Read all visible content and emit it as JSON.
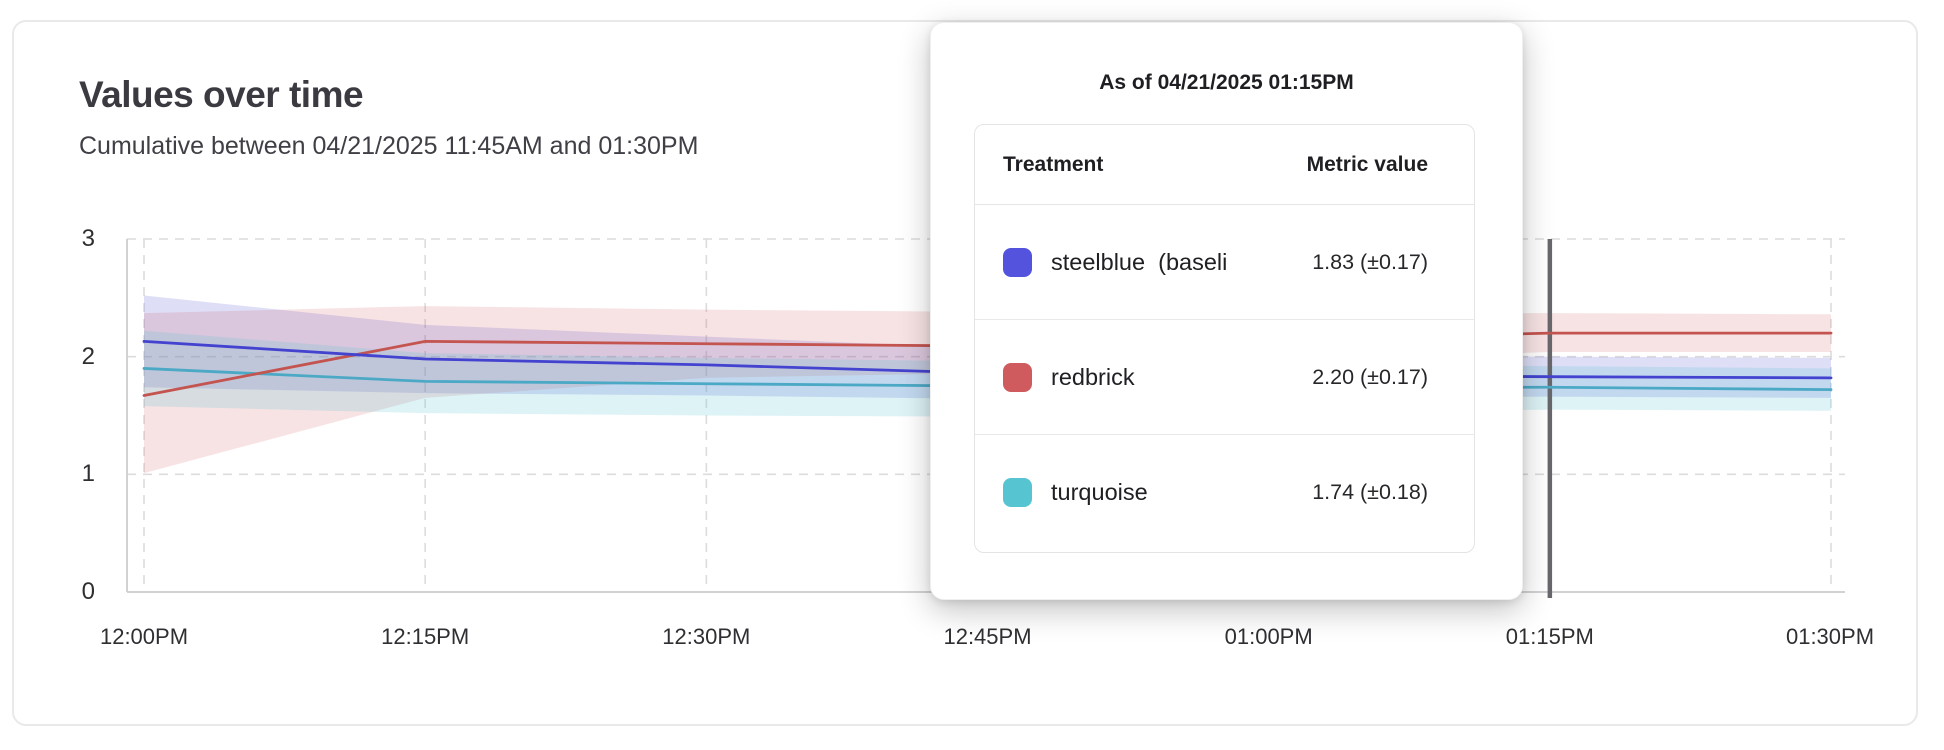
{
  "card": {
    "title": "Values over time",
    "subtitle": "Cumulative between 04/21/2025 11:45AM and 01:30PM"
  },
  "tooltip": {
    "title": "As of 04/21/2025 01:15PM",
    "columns": [
      "Treatment",
      "Metric value"
    ],
    "rows": [
      {
        "label": "steelblue  (baseli",
        "value": "1.83 (±0.17)",
        "swatch_color": "#5353de"
      },
      {
        "label": "redbrick",
        "value": "2.20 (±0.17)",
        "swatch_color": "#cf5b5e"
      },
      {
        "label": "turquoise",
        "value": "1.74 (±0.18)",
        "swatch_color": "#57c5d1"
      }
    ]
  },
  "chart_data": {
    "type": "line",
    "title": "Values over time",
    "x_tick_labels": [
      "12:00PM",
      "12:15PM",
      "12:30PM",
      "12:45PM",
      "01:00PM",
      "01:15PM",
      "01:30PM"
    ],
    "x_minutes": [
      0,
      15,
      30,
      45,
      60,
      75,
      90
    ],
    "y_ticks": [
      0,
      1,
      2,
      3
    ],
    "ylim": [
      0,
      3
    ],
    "grid": "dashed",
    "legend_position": "tooltip",
    "hover_marker": {
      "x_label": "01:15PM",
      "x_minute": 75,
      "color": "#68686c"
    },
    "colors": {
      "grid": "#dcdcdc",
      "axis": "#d2d2d4"
    },
    "series": [
      {
        "name": "steelblue",
        "line_color": "#4343cf",
        "band_color": "rgba(88,88,214,0.20)",
        "values": [
          2.13,
          1.98,
          1.93,
          1.86,
          1.84,
          1.83,
          1.82
        ],
        "band_upper": [
          2.52,
          2.27,
          2.17,
          2.07,
          2.02,
          2.0,
          1.99
        ],
        "band_lower": [
          1.74,
          1.69,
          1.67,
          1.64,
          1.65,
          1.66,
          1.65
        ]
      },
      {
        "name": "redbrick",
        "line_color": "#c3544f",
        "band_color": "rgba(205,90,92,0.17)",
        "values": [
          1.67,
          2.13,
          2.11,
          2.09,
          2.14,
          2.2,
          2.2
        ],
        "band_upper": [
          2.37,
          2.43,
          2.4,
          2.38,
          2.37,
          2.37,
          2.36
        ],
        "band_lower": [
          1.01,
          1.65,
          1.82,
          1.86,
          1.95,
          2.04,
          2.04
        ]
      },
      {
        "name": "turquoise",
        "line_color": "#4ca9c5",
        "band_color": "rgba(85,197,209,0.20)",
        "values": [
          1.9,
          1.79,
          1.77,
          1.75,
          1.74,
          1.74,
          1.72
        ],
        "band_upper": [
          2.22,
          2.03,
          1.99,
          1.96,
          1.94,
          1.92,
          1.9
        ],
        "band_lower": [
          1.58,
          1.52,
          1.5,
          1.49,
          1.51,
          1.55,
          1.54
        ]
      }
    ]
  }
}
